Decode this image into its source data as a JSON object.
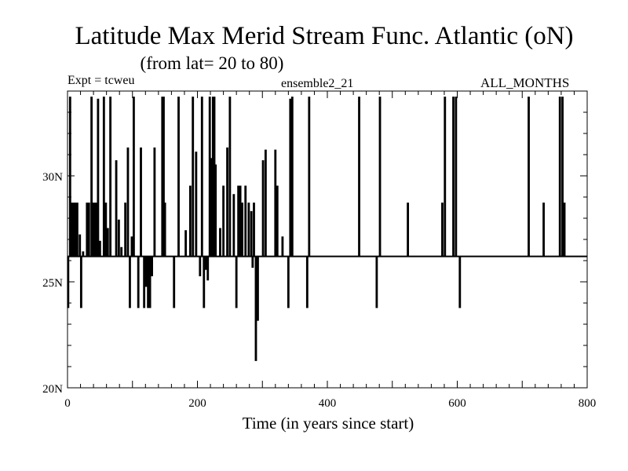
{
  "chart_data": {
    "type": "line",
    "title": "Latitude Max Merid Stream Func. Atlantic (oN)",
    "subtitle": "(from lat= 20 to 80)",
    "header_left": "Expt = tcweu",
    "header_center": "ensemble2_21",
    "header_right": "ALL_MONTHS",
    "xlabel": "Time (in years since start)",
    "ylabel": "",
    "xlim": [
      0,
      800
    ],
    "ylim": [
      20,
      34
    ],
    "xticks": [
      0,
      200,
      400,
      600,
      800
    ],
    "xtick_labels": [
      "0",
      "200",
      "400",
      "600",
      "800"
    ],
    "yticks": [
      20,
      25,
      30
    ],
    "ytick_labels": [
      "20N",
      "25N",
      "30N"
    ],
    "baseline": 26.2,
    "grid": false,
    "series": [
      {
        "name": "",
        "color": "#000000",
        "baseline": 26.2,
        "excursions": [
          [
            1,
            23.8
          ],
          [
            4,
            33.7
          ],
          [
            6,
            28.7
          ],
          [
            9,
            28.7
          ],
          [
            12,
            28.7
          ],
          [
            15,
            28.7
          ],
          [
            19,
            27.2
          ],
          [
            21,
            23.8
          ],
          [
            24,
            26.4
          ],
          [
            30,
            28.7
          ],
          [
            33,
            28.7
          ],
          [
            37,
            33.7
          ],
          [
            39,
            28.7
          ],
          [
            41,
            28.7
          ],
          [
            44,
            28.7
          ],
          [
            47,
            33.6
          ],
          [
            50,
            26.9
          ],
          [
            56,
            33.7
          ],
          [
            59,
            28.7
          ],
          [
            62,
            27.5
          ],
          [
            66,
            33.7
          ],
          [
            75,
            30.7
          ],
          [
            79,
            27.9
          ],
          [
            83,
            26.6
          ],
          [
            89,
            28.7
          ],
          [
            93,
            31.3
          ],
          [
            96,
            23.8
          ],
          [
            99,
            27.1
          ],
          [
            102,
            33.7
          ],
          [
            109,
            23.8
          ],
          [
            113,
            31.3
          ],
          [
            118,
            23.8
          ],
          [
            121,
            24.8
          ],
          [
            124,
            23.8
          ],
          [
            127,
            23.8
          ],
          [
            130,
            25.3
          ],
          [
            134,
            31.3
          ],
          [
            146,
            33.7
          ],
          [
            148,
            33.7
          ],
          [
            150,
            28.7
          ],
          [
            164,
            23.8
          ],
          [
            171,
            33.7
          ],
          [
            182,
            27.4
          ],
          [
            189,
            29.5
          ],
          [
            193,
            33.7
          ],
          [
            198,
            31.1
          ],
          [
            204,
            25.3
          ],
          [
            207,
            33.7
          ],
          [
            210,
            23.8
          ],
          [
            213,
            25.6
          ],
          [
            216,
            25.1
          ],
          [
            219,
            33.7
          ],
          [
            222,
            30.8
          ],
          [
            224,
            33.7
          ],
          [
            226,
            33.7
          ],
          [
            228,
            30.5
          ],
          [
            235,
            27.5
          ],
          [
            240,
            29.5
          ],
          [
            246,
            31.3
          ],
          [
            250,
            33.7
          ],
          [
            256,
            29.1
          ],
          [
            260,
            23.8
          ],
          [
            263,
            29.5
          ],
          [
            266,
            29.5
          ],
          [
            269,
            28.7
          ],
          [
            274,
            29.5
          ],
          [
            279,
            28.7
          ],
          [
            283,
            28.3
          ],
          [
            285,
            25.7
          ],
          [
            287,
            28.7
          ],
          [
            290,
            21.3
          ],
          [
            293,
            23.2
          ],
          [
            301,
            30.7
          ],
          [
            305,
            31.2
          ],
          [
            320,
            31.2
          ],
          [
            323,
            29.5
          ],
          [
            331,
            27.1
          ],
          [
            340,
            23.8
          ],
          [
            343,
            33.6
          ],
          [
            346,
            33.7
          ],
          [
            369,
            23.8
          ],
          [
            372,
            33.7
          ],
          [
            449,
            33.7
          ],
          [
            476,
            23.8
          ],
          [
            481,
            33.7
          ],
          [
            524,
            28.7
          ],
          [
            577,
            28.7
          ],
          [
            581,
            33.7
          ],
          [
            594,
            33.7
          ],
          [
            598,
            33.7
          ],
          [
            604,
            23.8
          ],
          [
            710,
            33.7
          ],
          [
            733,
            28.7
          ],
          [
            758,
            33.7
          ],
          [
            762,
            33.7
          ],
          [
            765,
            28.7
          ]
        ]
      }
    ]
  }
}
